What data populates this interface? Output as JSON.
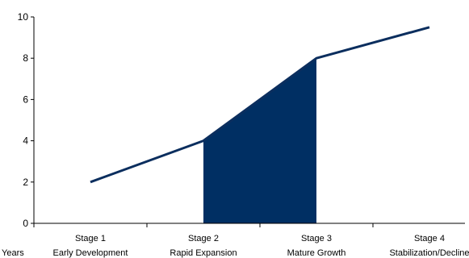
{
  "chart_data": {
    "type": "line",
    "categories": [
      "Stage 1",
      "Stage 2",
      "Stage 3",
      "Stage 4"
    ],
    "category_descriptions": [
      "Early Development",
      "Rapid Expansion",
      "Mature Growth",
      "Stabilization/Decline"
    ],
    "x_axis_title": "Years",
    "values": [
      2,
      4,
      8,
      9.5
    ],
    "shaded_region": {
      "from": "Stage 2",
      "to": "Stage 3"
    },
    "ylim": [
      0,
      10
    ],
    "yticks": [
      0,
      2,
      4,
      6,
      8,
      10
    ],
    "grid": false,
    "legend": "none",
    "colors": {
      "line": "#0b2e5e",
      "fill": "#002f63",
      "axis": "#000000"
    }
  }
}
